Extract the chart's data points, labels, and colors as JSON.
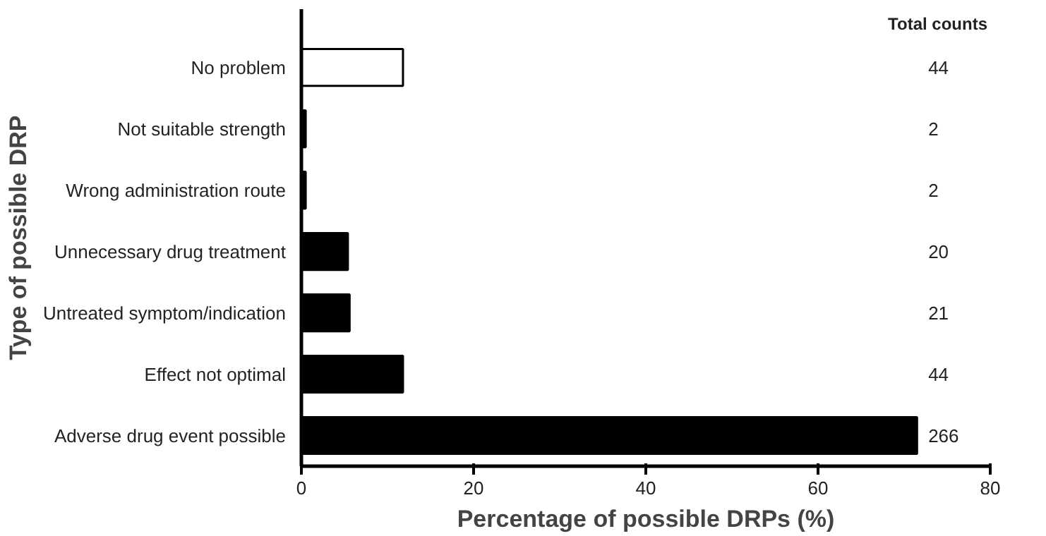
{
  "chart_data": {
    "type": "bar",
    "orientation": "horizontal",
    "xlabel": "Percentage of possible DRPs (%)",
    "ylabel": "Type of possible DRP",
    "categories": [
      "No problem",
      "Not suitable strength",
      "Wrong administration route",
      "Unnecessary drug treatment",
      "Untreated symptom/indication",
      "Effect not optimal",
      "Adverse drug event possible"
    ],
    "values": [
      11.8,
      0.5,
      0.5,
      5.4,
      5.6,
      11.8,
      71.5
    ],
    "colors": [
      "#ffffff",
      "#000000",
      "#000000",
      "#000000",
      "#000000",
      "#000000",
      "#000000"
    ],
    "xlim": [
      0,
      80
    ],
    "xticks": [
      0,
      20,
      40,
      60,
      80
    ],
    "grid": false,
    "annotations": [
      "Total counts",
      "44",
      "2",
      "2",
      "20",
      "21",
      "44",
      "266"
    ]
  }
}
